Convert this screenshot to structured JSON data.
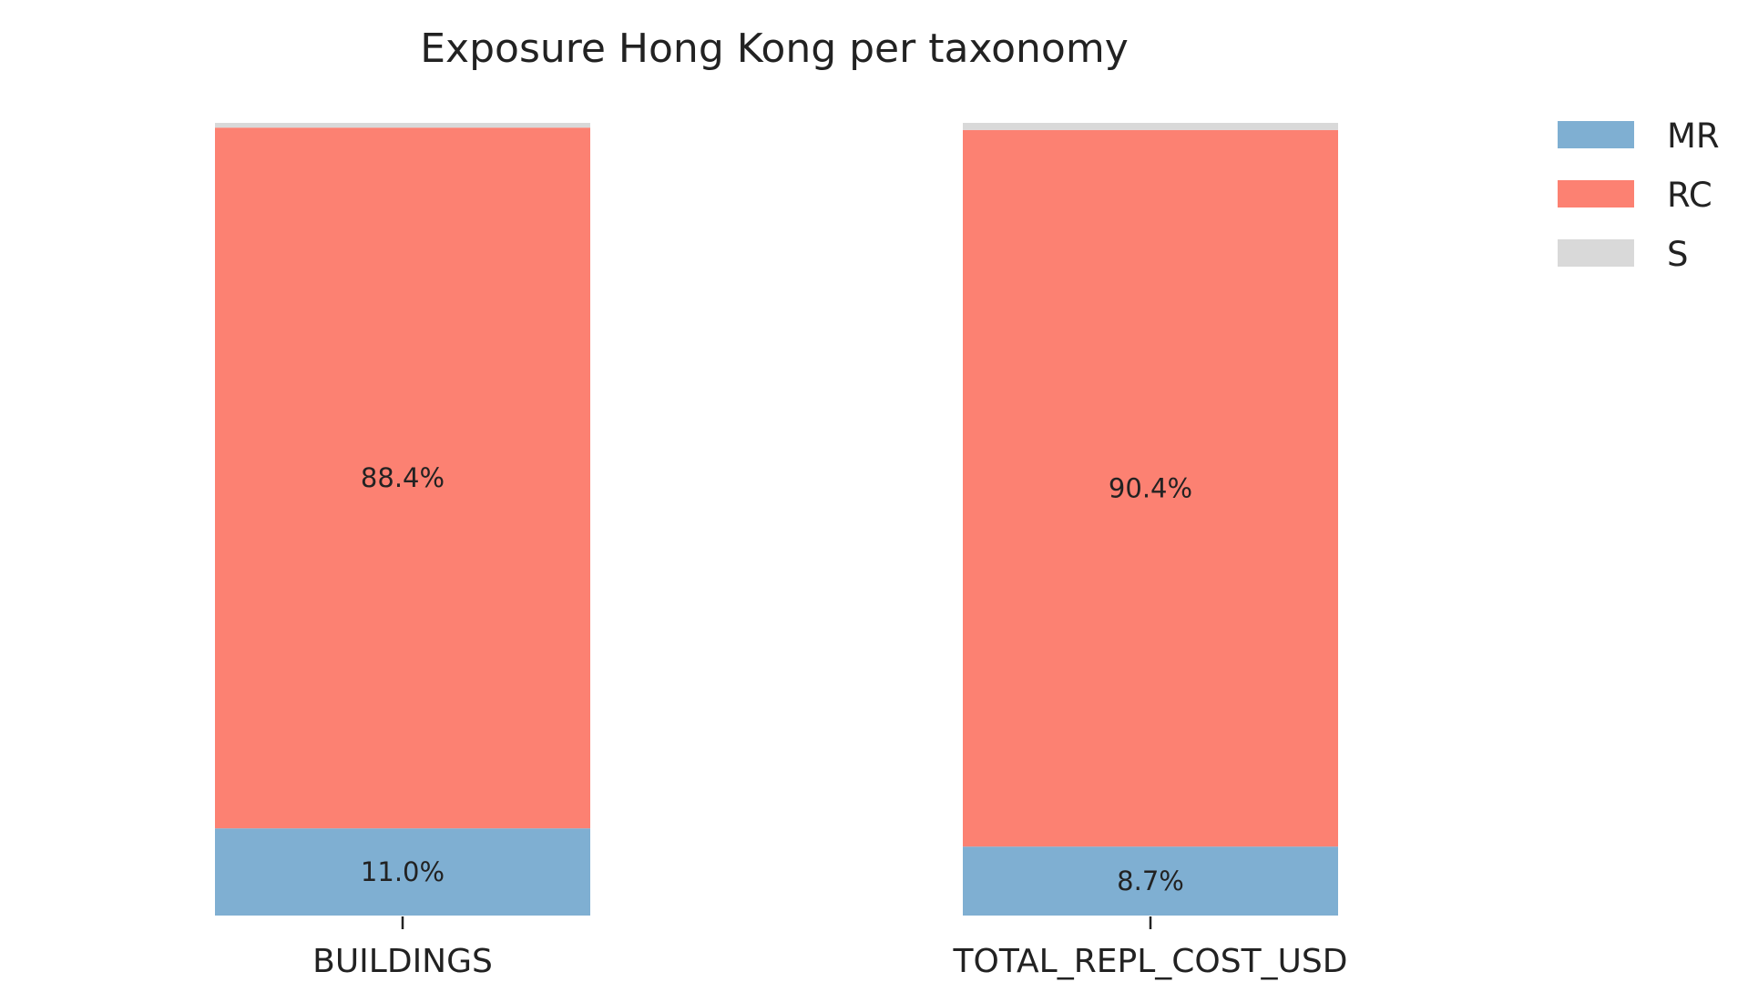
{
  "chart_data": {
    "type": "bar",
    "stacked": true,
    "normalized": true,
    "title": "Exposure Hong Kong per taxonomy",
    "xlabel": "",
    "ylabel": "",
    "ylim": [
      0,
      100
    ],
    "grid": false,
    "legend_position": "top-right",
    "categories": [
      "BUILDINGS",
      "TOTAL_REPL_COST_USD"
    ],
    "series": [
      {
        "name": "MR",
        "color": "#7fafd2",
        "values": [
          11.0,
          8.7
        ],
        "labels": [
          "11.0%",
          "8.7%"
        ]
      },
      {
        "name": "RC",
        "color": "#fc8172",
        "values": [
          88.4,
          90.4
        ],
        "labels": [
          "88.4%",
          "90.4%"
        ]
      },
      {
        "name": "S",
        "color": "#d9d9d9",
        "values": [
          0.6,
          0.9
        ],
        "labels": [
          "",
          ""
        ]
      }
    ]
  }
}
